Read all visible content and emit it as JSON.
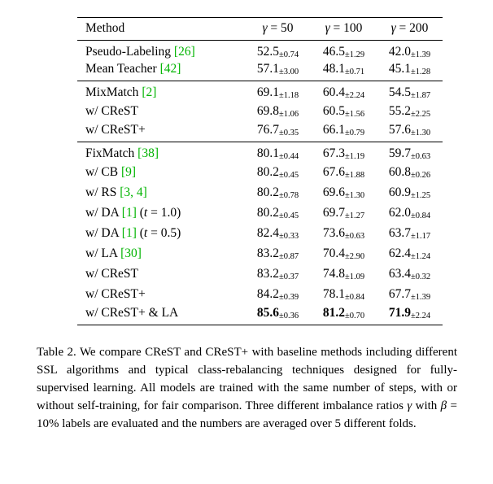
{
  "colors": {
    "citation_green": "#00b400"
  },
  "table": {
    "columns": [
      [
        {
          "t": "Method"
        }
      ],
      [
        {
          "t": "γ",
          "italic": true
        },
        {
          "t": " = 50"
        }
      ],
      [
        {
          "t": "γ",
          "italic": true
        },
        {
          "t": " = 100"
        }
      ],
      [
        {
          "t": "γ",
          "italic": true
        },
        {
          "t": " = 200"
        }
      ]
    ],
    "groups": [
      [
        {
          "method": [
            {
              "t": "Pseudo-Labeling "
            },
            {
              "t": "[26]",
              "green": true
            }
          ],
          "values": [
            {
              "main": "52.5",
              "std": "±0.74"
            },
            {
              "main": "46.5",
              "std": "±1.29"
            },
            {
              "main": "42.0",
              "std": "±1.39"
            }
          ]
        },
        {
          "method": [
            {
              "t": "Mean Teacher "
            },
            {
              "t": "[42]",
              "green": true
            }
          ],
          "values": [
            {
              "main": "57.1",
              "std": "±3.00"
            },
            {
              "main": "48.1",
              "std": "±0.71"
            },
            {
              "main": "45.1",
              "std": "±1.28"
            }
          ]
        }
      ],
      [
        {
          "method": [
            {
              "t": "MixMatch "
            },
            {
              "t": "[2]",
              "green": true
            }
          ],
          "values": [
            {
              "main": "69.1",
              "std": "±1.18"
            },
            {
              "main": "60.4",
              "std": "±2.24"
            },
            {
              "main": "54.5",
              "std": "±1.87"
            }
          ]
        },
        {
          "method": [
            {
              "t": "w/ CReST"
            }
          ],
          "values": [
            {
              "main": "69.8",
              "std": "±1.06"
            },
            {
              "main": "60.5",
              "std": "±1.56"
            },
            {
              "main": "55.2",
              "std": "±2.25"
            }
          ]
        },
        {
          "method": [
            {
              "t": "w/ CReST+"
            }
          ],
          "values": [
            {
              "main": "76.7",
              "std": "±0.35"
            },
            {
              "main": "66.1",
              "std": "±0.79"
            },
            {
              "main": "57.6",
              "std": "±1.30"
            }
          ]
        }
      ],
      [
        {
          "method": [
            {
              "t": "FixMatch "
            },
            {
              "t": "[38]",
              "green": true
            }
          ],
          "values": [
            {
              "main": "80.1",
              "std": "±0.44"
            },
            {
              "main": "67.3",
              "std": "±1.19"
            },
            {
              "main": "59.7",
              "std": "±0.63"
            }
          ]
        },
        {
          "method": [
            {
              "t": "w/ CB "
            },
            {
              "t": "[9]",
              "green": true
            }
          ],
          "values": [
            {
              "main": "80.2",
              "std": "±0.45"
            },
            {
              "main": "67.6",
              "std": "±1.88"
            },
            {
              "main": "60.8",
              "std": "±0.26"
            }
          ]
        },
        {
          "method": [
            {
              "t": "w/ RS "
            },
            {
              "t": "[3, 4]",
              "green": true
            }
          ],
          "values": [
            {
              "main": "80.2",
              "std": "±0.78"
            },
            {
              "main": "69.6",
              "std": "±1.30"
            },
            {
              "main": "60.9",
              "std": "±1.25"
            }
          ]
        },
        {
          "method": [
            {
              "t": "w/ DA "
            },
            {
              "t": "[1]",
              "green": true
            },
            {
              "t": " ("
            },
            {
              "t": "t",
              "italic": true
            },
            {
              "t": " = 1.0)"
            }
          ],
          "values": [
            {
              "main": "80.2",
              "std": "±0.45"
            },
            {
              "main": "69.7",
              "std": "±1.27"
            },
            {
              "main": "62.0",
              "std": "±0.84"
            }
          ]
        },
        {
          "method": [
            {
              "t": "w/ DA "
            },
            {
              "t": "[1]",
              "green": true
            },
            {
              "t": " ("
            },
            {
              "t": "t",
              "italic": true
            },
            {
              "t": " = 0.5)"
            }
          ],
          "values": [
            {
              "main": "82.4",
              "std": "±0.33"
            },
            {
              "main": "73.6",
              "std": "±0.63"
            },
            {
              "main": "63.7",
              "std": "±1.17"
            }
          ]
        },
        {
          "method": [
            {
              "t": "w/ LA "
            },
            {
              "t": "[30]",
              "green": true
            }
          ],
          "values": [
            {
              "main": "83.2",
              "std": "±0.87"
            },
            {
              "main": "70.4",
              "std": "±2.90"
            },
            {
              "main": "62.4",
              "std": "±1.24"
            }
          ]
        },
        {
          "method": [
            {
              "t": "w/ CReST"
            }
          ],
          "values": [
            {
              "main": "83.2",
              "std": "±0.37"
            },
            {
              "main": "74.8",
              "std": "±1.09"
            },
            {
              "main": "63.4",
              "std": "±0.32"
            }
          ]
        },
        {
          "method": [
            {
              "t": "w/ CReST+"
            }
          ],
          "values": [
            {
              "main": "84.2",
              "std": "±0.39"
            },
            {
              "main": "78.1",
              "std": "±0.84"
            },
            {
              "main": "67.7",
              "std": "±1.39"
            }
          ]
        },
        {
          "method": [
            {
              "t": "w/ CReST+ & LA"
            }
          ],
          "values": [
            {
              "main": "85.6",
              "std": "±0.36",
              "bold": true
            },
            {
              "main": "81.2",
              "std": "±0.70",
              "bold": true
            },
            {
              "main": "71.9",
              "std": "±2.24",
              "bold": true
            }
          ]
        }
      ]
    ]
  },
  "caption": {
    "segments": [
      {
        "t": "Table 2. We compare CReST and CReST+ with baseline methods including different SSL algorithms and typical class-rebalancing techniques designed for fully-supervised learning.  All models are trained with the same number of steps, with or without self-training, for fair comparison.  Three different imbalance ratios "
      },
      {
        "t": "γ",
        "italic": true
      },
      {
        "t": " with "
      },
      {
        "t": "β",
        "italic": true
      },
      {
        "t": " = 10% labels are evaluated and the numbers are averaged over 5 different folds."
      }
    ]
  }
}
